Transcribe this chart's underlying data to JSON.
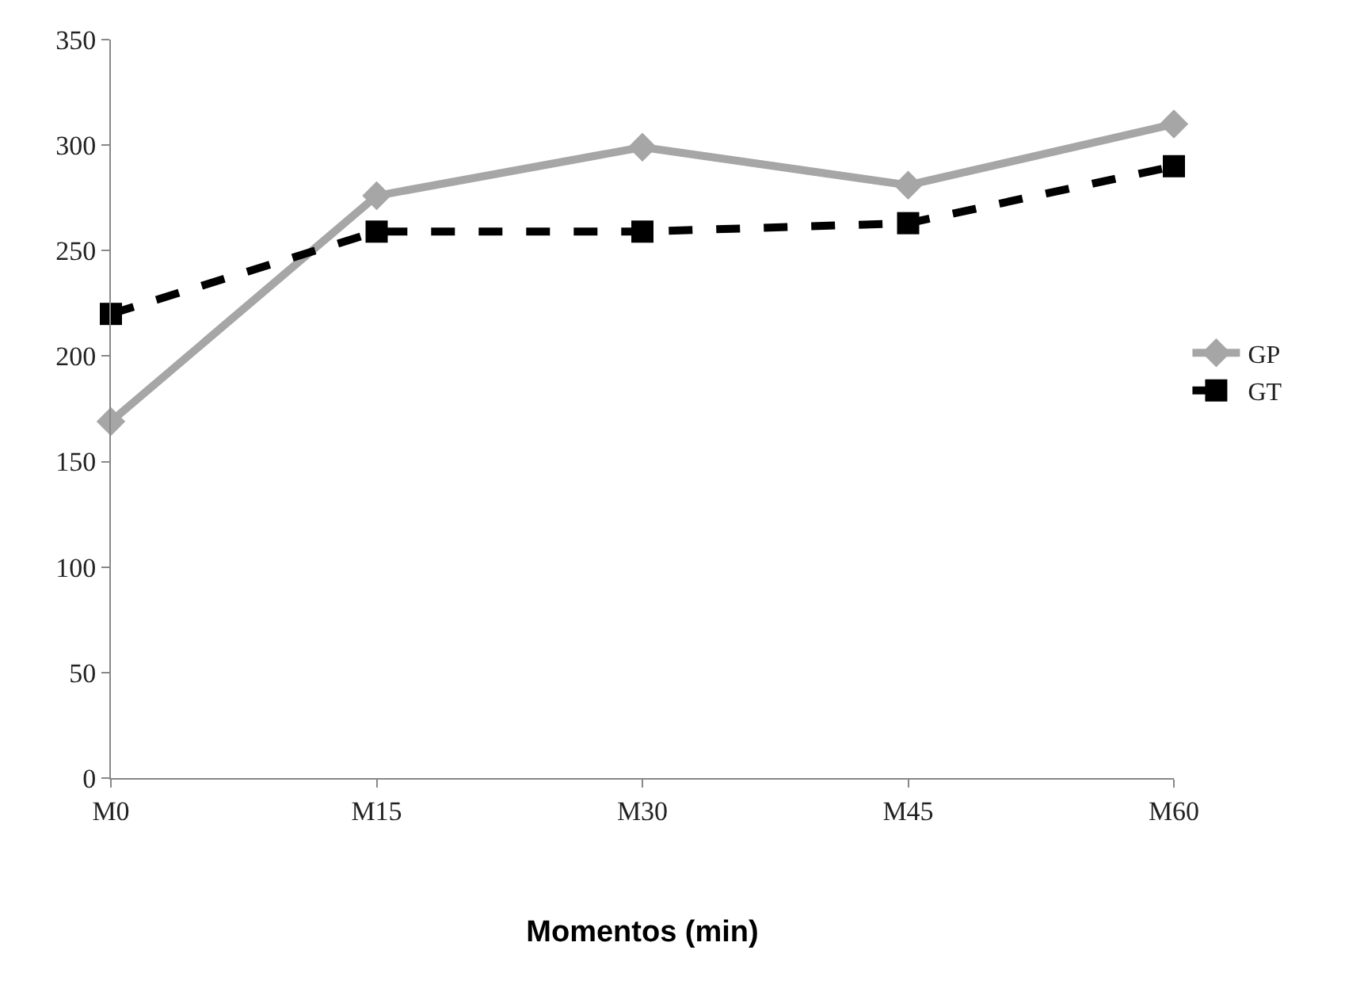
{
  "chart_data": {
    "type": "line",
    "xlabel": "Momentos (min)",
    "categories": [
      "M0",
      "M15",
      "M30",
      "M45",
      "M60"
    ],
    "ylim": [
      0,
      350
    ],
    "yticks": [
      0,
      50,
      100,
      150,
      200,
      250,
      300,
      350
    ],
    "legend": "right",
    "series": [
      {
        "name": "GP",
        "color": "#a6a6a6",
        "marker": "diamond",
        "line_style": "solid",
        "values": [
          169,
          276,
          299,
          281,
          310
        ]
      },
      {
        "name": "GT",
        "color": "#000000",
        "marker": "square",
        "line_style": "dashed",
        "values": [
          220,
          259,
          259,
          263,
          290
        ]
      }
    ]
  }
}
